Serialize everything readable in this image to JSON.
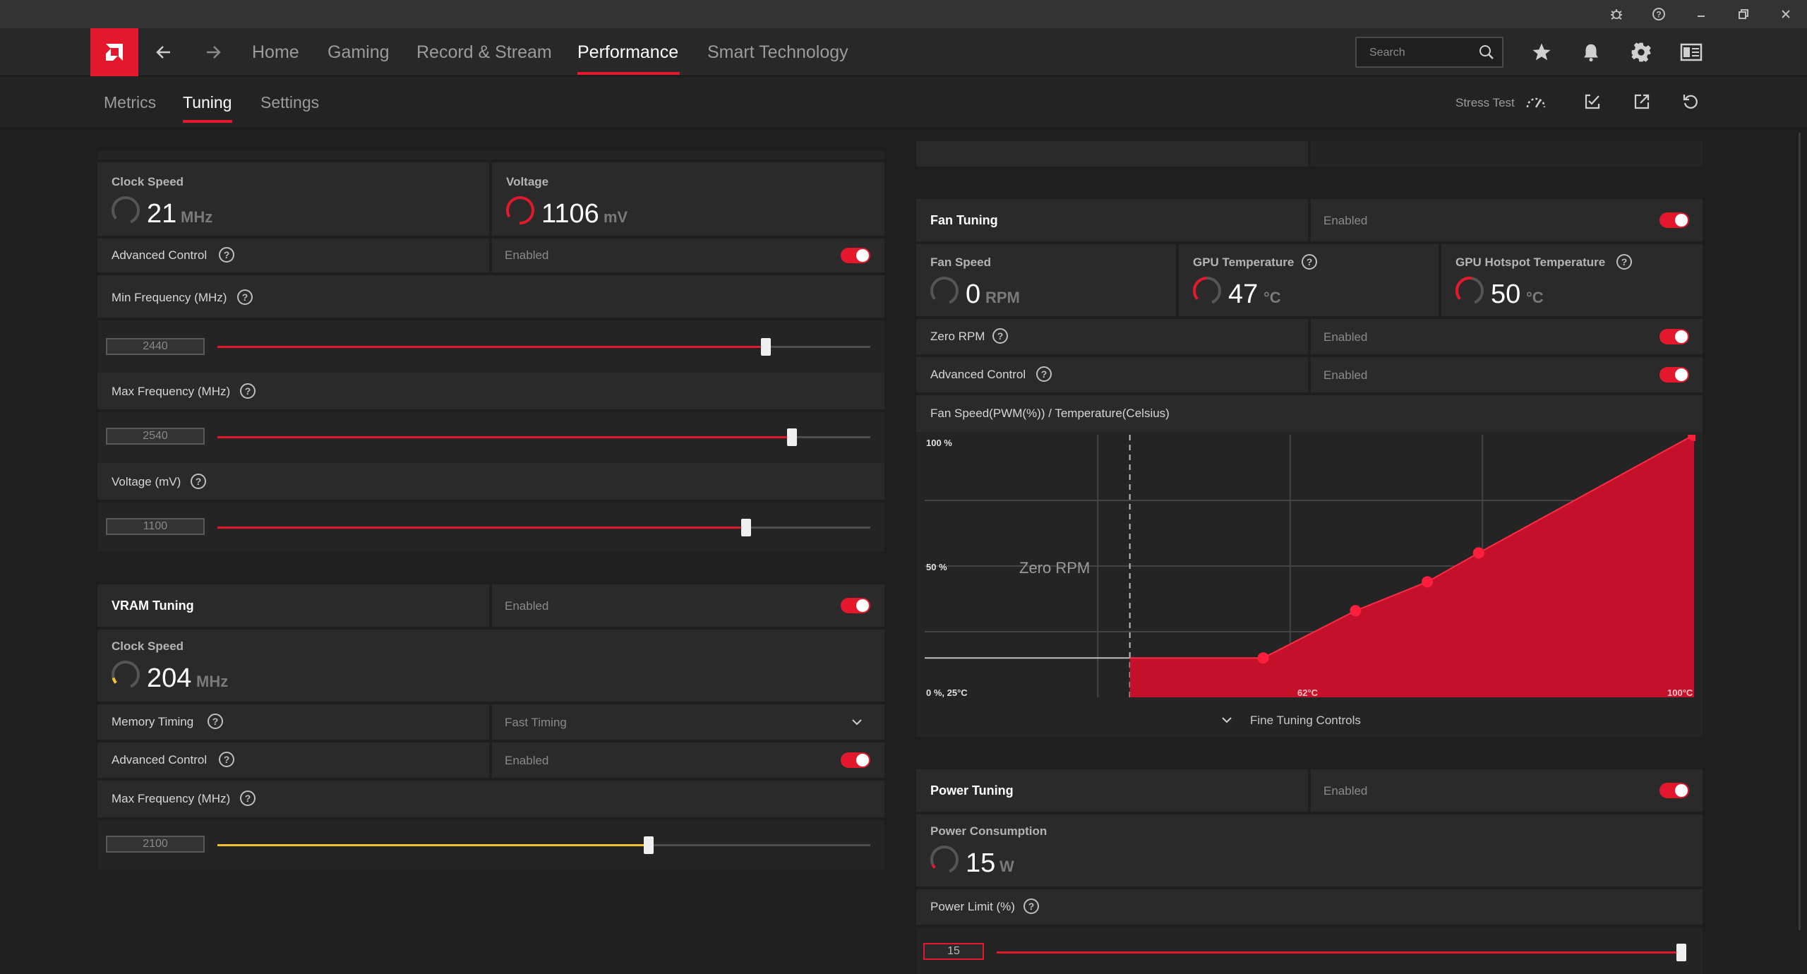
{
  "titlebar": {
    "icons": [
      "bug-icon",
      "help-circle-icon",
      "minimize-icon",
      "restore-icon",
      "close-icon"
    ]
  },
  "nav": {
    "items": [
      "Home",
      "Gaming",
      "Record & Stream",
      "Performance",
      "Smart Technology"
    ],
    "active": "Performance",
    "search_placeholder": "Search",
    "accent": "#e3182d"
  },
  "subnav": {
    "items": [
      "Metrics",
      "Tuning",
      "Settings"
    ],
    "active": "Tuning",
    "stress_test": "Stress Test"
  },
  "gpu": {
    "clock_label": "Clock Speed",
    "clock_value": "21",
    "clock_unit": "MHz",
    "voltage_label": "Voltage",
    "voltage_value": "1106",
    "voltage_unit": "mV",
    "advanced_label": "Advanced Control",
    "advanced_state": "Enabled",
    "min_freq_label": "Min Frequency (MHz)",
    "min_freq_value": "2440",
    "min_freq_fraction": 0.84,
    "max_freq_label": "Max Frequency (MHz)",
    "max_freq_value": "2540",
    "max_freq_fraction": 0.88,
    "voltage_ctrl_label": "Voltage (mV)",
    "voltage_ctrl_value": "1100",
    "voltage_ctrl_fraction": 0.81
  },
  "vram": {
    "title": "VRAM Tuning",
    "state": "Enabled",
    "clock_label": "Clock Speed",
    "clock_value": "204",
    "clock_unit": "MHz",
    "memory_timing_label": "Memory Timing",
    "memory_timing_value": "Fast Timing",
    "advanced_label": "Advanced Control",
    "advanced_state": "Enabled",
    "max_freq_label": "Max Frequency (MHz)",
    "max_freq_value": "2100",
    "max_freq_fraction": 0.66,
    "accent": "#f2c12e"
  },
  "fan": {
    "title": "Fan Tuning",
    "state": "Enabled",
    "fan_speed_label": "Fan Speed",
    "fan_speed_value": "0",
    "fan_speed_unit": "RPM",
    "gpu_temp_label": "GPU Temperature",
    "gpu_temp_value": "47",
    "gpu_temp_unit": "°C",
    "hotspot_label": "GPU Hotspot Temperature",
    "hotspot_value": "50",
    "hotspot_unit": "°C",
    "zero_rpm_label": "Zero RPM",
    "zero_rpm_state": "Enabled",
    "advanced_label": "Advanced Control",
    "advanced_state": "Enabled",
    "chart_title": "Fan Speed(PWM(%)) / Temperature(Celsius)",
    "fine_tuning": "Fine Tuning Controls"
  },
  "power": {
    "title": "Power Tuning",
    "state": "Enabled",
    "consumption_label": "Power Consumption",
    "consumption_value": "15",
    "consumption_unit": "W",
    "limit_label": "Power Limit (%)",
    "limit_value": "15",
    "limit_fraction": 1.0
  },
  "chart_data": {
    "type": "area",
    "title": "Fan Speed(PWM(%)) / Temperature(Celsius)",
    "x_unit": "°C",
    "y_unit": "%",
    "xlim": [
      25,
      100
    ],
    "ylim": [
      0,
      100
    ],
    "labels": {
      "y_top": "100 %",
      "y_mid": "50 %",
      "origin": "0 %, 25°C",
      "x_mid": "62°C",
      "x_end": "100°C",
      "zero_rpm": "Zero RPM"
    },
    "zero_rpm_until_c": 45,
    "zero_rpm_level_pct": 15,
    "points": [
      {
        "x": 45,
        "y": 15
      },
      {
        "x": 58,
        "y": 15
      },
      {
        "x": 67,
        "y": 33
      },
      {
        "x": 74,
        "y": 44
      },
      {
        "x": 79,
        "y": 55
      },
      {
        "x": 100,
        "y": 100
      }
    ]
  }
}
